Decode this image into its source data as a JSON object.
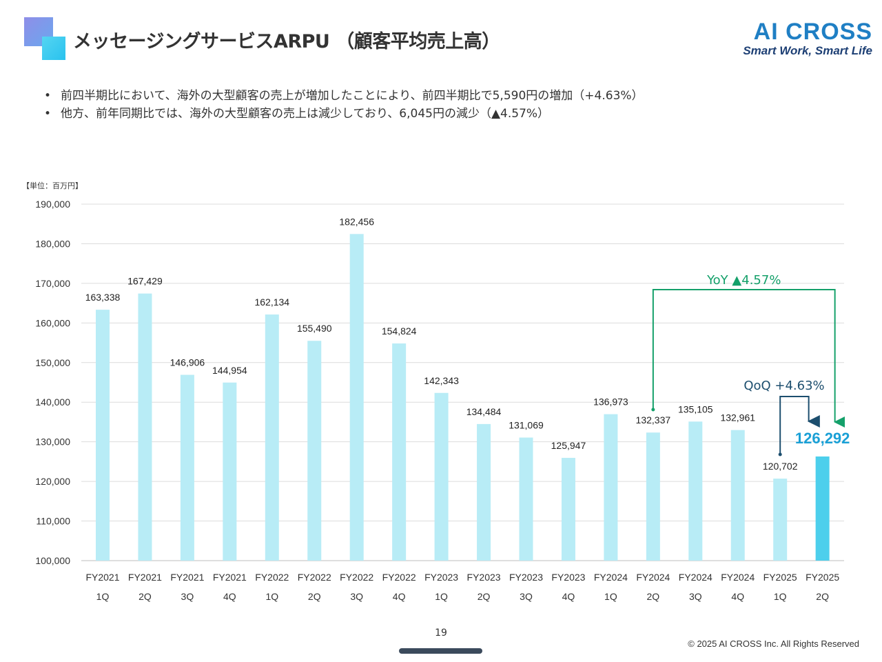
{
  "page_title": "メッセージングサービスARPU （顧客平均売上高）",
  "brand": {
    "name": "AI CROSS",
    "tagline": "Smart Work, Smart Life"
  },
  "bullets": [
    "前四半期比において、海外の大型顧客の売上が増加したことにより、前四半期比で5,590円の増加（+4.63%）",
    "他方、前年同期比では、海外の大型顧客の売上は減少しており、6,045円の減少（▲4.57%）"
  ],
  "unit_label": "【単位：百万円】",
  "page_number": "19",
  "copyright": "© 2025 AI CROSS Inc. All Rights Reserved",
  "colors": {
    "bar": "#b8ecf6",
    "bar_highlight": "#4dcfec",
    "yoy": "#14a06a",
    "qoq": "#1c4e6e",
    "highlight_label": "#1aa0d6"
  },
  "chart_data": {
    "type": "bar",
    "categories": [
      [
        "FY2021",
        "1Q"
      ],
      [
        "FY2021",
        "2Q"
      ],
      [
        "FY2021",
        "3Q"
      ],
      [
        "FY2021",
        "4Q"
      ],
      [
        "FY2022",
        "1Q"
      ],
      [
        "FY2022",
        "2Q"
      ],
      [
        "FY2022",
        "3Q"
      ],
      [
        "FY2022",
        "4Q"
      ],
      [
        "FY2023",
        "1Q"
      ],
      [
        "FY2023",
        "2Q"
      ],
      [
        "FY2023",
        "3Q"
      ],
      [
        "FY2023",
        "4Q"
      ],
      [
        "FY2024",
        "1Q"
      ],
      [
        "FY2024",
        "2Q"
      ],
      [
        "FY2024",
        "3Q"
      ],
      [
        "FY2024",
        "4Q"
      ],
      [
        "FY2025",
        "1Q"
      ],
      [
        "FY2025",
        "2Q"
      ]
    ],
    "values": [
      163338,
      167429,
      146906,
      144954,
      162134,
      155490,
      182456,
      154824,
      142343,
      134484,
      131069,
      125947,
      136973,
      132337,
      135105,
      132961,
      120702,
      126292
    ],
    "value_labels": [
      "163,338",
      "167,429",
      "146,906",
      "144,954",
      "162,134",
      "155,490",
      "182,456",
      "154,824",
      "142,343",
      "134,484",
      "131,069",
      "125,947",
      "136,973",
      "132,337",
      "135,105",
      "132,961",
      "120,702",
      "126,292"
    ],
    "highlight_index": 17,
    "ylim": [
      100000,
      190000
    ],
    "yticks": [
      100000,
      110000,
      120000,
      130000,
      140000,
      150000,
      160000,
      170000,
      180000,
      190000
    ],
    "ytick_labels": [
      "100,000",
      "110,000",
      "120,000",
      "130,000",
      "140,000",
      "150,000",
      "160,000",
      "170,000",
      "180,000",
      "190,000"
    ],
    "grid": true,
    "annotations": {
      "yoy": {
        "label": "YoY ▲4.57%",
        "from_index": 13,
        "to_index": 17
      },
      "qoq": {
        "label": "QoQ +4.63%",
        "from_index": 16,
        "to_index": 17
      }
    }
  }
}
